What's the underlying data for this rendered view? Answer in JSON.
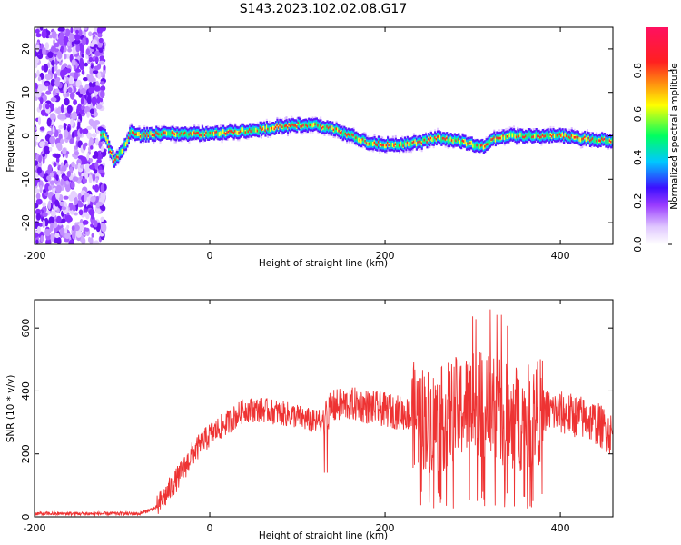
{
  "figure": {
    "title": "S143.2023.102.02.08.G17"
  },
  "chart_data": [
    {
      "type": "heatmap",
      "title": "S143.2023.102.02.08.G17",
      "xlabel": "Height of straight line (km)",
      "ylabel": "Frequency (Hz)",
      "xlim": [
        -200,
        460
      ],
      "ylim": [
        -25,
        25
      ],
      "x_ticks": [
        -200,
        0,
        200,
        400
      ],
      "y_ticks": [
        -20,
        -10,
        0,
        10,
        20
      ],
      "colorbar": {
        "label": "Normalized spectral amplitude",
        "range": [
          0,
          1
        ],
        "ticks": [
          0.0,
          0.2,
          0.4,
          0.6,
          0.8
        ],
        "tick_labels": [
          "0.0",
          "0.2",
          "0.4",
          "0.6",
          "0.8"
        ],
        "colormap": [
          "#ffffff",
          "#e0c8ff",
          "#9a3cff",
          "#3c10ff",
          "#00c8ff",
          "#00ff60",
          "#ffff00",
          "#ff2020",
          "#ff1060"
        ]
      },
      "ridge_center": {
        "x": [
          -120,
          -110,
          -100,
          -90,
          -80,
          -60,
          -40,
          -20,
          0,
          20,
          40,
          60,
          80,
          100,
          120,
          140,
          160,
          180,
          200,
          220,
          240,
          260,
          280,
          300,
          310,
          320,
          340,
          360,
          380,
          400,
          420,
          440,
          460
        ],
        "y": [
          0,
          -6,
          -3,
          1,
          0,
          0.5,
          0.5,
          0.5,
          0.5,
          0.8,
          1.2,
          1.5,
          2.2,
          2.5,
          2.5,
          1.5,
          0,
          -1.5,
          -2,
          -2,
          -1.5,
          -0.5,
          -1,
          -2,
          -2.5,
          -1,
          0,
          0,
          0,
          0,
          -0.5,
          -1,
          -1
        ]
      },
      "noise_region_x": [
        -200,
        -120
      ],
      "grid": false
    },
    {
      "type": "line",
      "xlabel": "Height of straight line (km)",
      "ylabel": "SNR (10 * v/v)",
      "xlim": [
        -200,
        460
      ],
      "ylim": [
        0,
        690
      ],
      "x_ticks": [
        -200,
        0,
        200,
        400
      ],
      "y_ticks": [
        0,
        200,
        400,
        600
      ],
      "color": "#ee3333",
      "series_envelope": {
        "x": [
          -200,
          -150,
          -80,
          -60,
          -50,
          -40,
          -30,
          -20,
          -10,
          0,
          20,
          40,
          60,
          80,
          100,
          120,
          130,
          140,
          160,
          180,
          200,
          220,
          240,
          260,
          280,
          300,
          320,
          340,
          360,
          380,
          400,
          420,
          440,
          460
        ],
        "y": [
          10,
          10,
          10,
          30,
          70,
          110,
          150,
          200,
          230,
          260,
          300,
          340,
          340,
          330,
          320,
          300,
          310,
          350,
          360,
          350,
          340,
          330,
          320,
          300,
          340,
          360,
          350,
          320,
          310,
          340,
          330,
          320,
          300,
          260
        ]
      },
      "grid": false
    }
  ]
}
